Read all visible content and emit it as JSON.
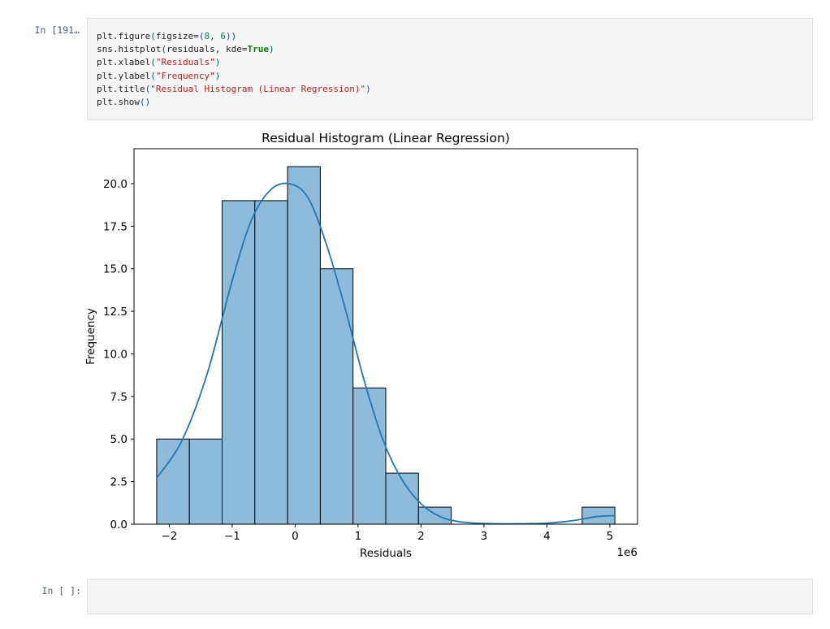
{
  "cells": {
    "first": {
      "prompt": "In [191…",
      "code_lines": [
        [
          {
            "t": "plt.figure",
            "c": "fn"
          },
          {
            "t": "(",
            "c": "p"
          },
          {
            "t": "figsize=",
            "c": "fn"
          },
          {
            "t": "(",
            "c": "p"
          },
          {
            "t": "8",
            "c": "num"
          },
          {
            "t": ", ",
            "c": "fn"
          },
          {
            "t": "6",
            "c": "num"
          },
          {
            "t": "))",
            "c": "p"
          }
        ],
        [
          {
            "t": "sns.histplot",
            "c": "fn"
          },
          {
            "t": "(",
            "c": "p"
          },
          {
            "t": "residuals, kde=",
            "c": "fn"
          },
          {
            "t": "True",
            "c": "kw"
          },
          {
            "t": ")",
            "c": "p"
          }
        ],
        [
          {
            "t": "plt.xlabel",
            "c": "fn"
          },
          {
            "t": "(",
            "c": "p"
          },
          {
            "t": "\"Residuals\"",
            "c": "str"
          },
          {
            "t": ")",
            "c": "p"
          }
        ],
        [
          {
            "t": "plt.ylabel",
            "c": "fn"
          },
          {
            "t": "(",
            "c": "p"
          },
          {
            "t": "\"Frequency\"",
            "c": "str"
          },
          {
            "t": ")",
            "c": "p"
          }
        ],
        [
          {
            "t": "plt.title",
            "c": "fn"
          },
          {
            "t": "(",
            "c": "p"
          },
          {
            "t": "\"Residual Histogram (Linear Regression)\"",
            "c": "str"
          },
          {
            "t": ")",
            "c": "p"
          }
        ],
        [
          {
            "t": "plt.show",
            "c": "fn"
          },
          {
            "t": "()",
            "c": "p"
          }
        ]
      ]
    },
    "second": {
      "prompt": "In [ ]:"
    }
  },
  "colors": {
    "bar_fill": "#8fbbda",
    "bar_stroke": "#000000",
    "kde_line": "#1f77b4"
  },
  "chart_data": {
    "type": "bar",
    "title": "Residual Histogram (Linear Regression)",
    "xlabel": "Residuals",
    "ylabel": "Frequency",
    "x_offset_label": "1e6",
    "bin_edges": [
      -2.2,
      -1.68,
      -1.16,
      -0.64,
      -0.12,
      0.4,
      0.92,
      1.44,
      1.96,
      2.48,
      3.0,
      3.52,
      4.04,
      4.56,
      5.08
    ],
    "values": [
      5,
      5,
      19,
      19,
      21,
      15,
      8,
      3,
      1,
      0,
      0,
      0,
      0,
      1
    ],
    "xlim": [
      -2.56,
      5.44
    ],
    "ylim": [
      0,
      22.05
    ],
    "xticks": [
      -2,
      -1,
      0,
      1,
      2,
      3,
      4,
      5
    ],
    "xtick_labels": [
      "−2",
      "−1",
      "0",
      "1",
      "2",
      "3",
      "4",
      "5"
    ],
    "yticks": [
      0.0,
      2.5,
      5.0,
      7.5,
      10.0,
      12.5,
      15.0,
      17.5,
      20.0
    ],
    "ytick_labels": [
      "0.0",
      "2.5",
      "5.0",
      "7.5",
      "10.0",
      "12.5",
      "15.0",
      "17.5",
      "20.0"
    ],
    "kde": {
      "x": [
        -2.2,
        -1.8,
        -1.4,
        -1.0,
        -0.7,
        -0.4,
        -0.1,
        0.2,
        0.5,
        0.8,
        1.1,
        1.4,
        1.7,
        2.0,
        2.3,
        2.6,
        3.0,
        3.5,
        4.0,
        4.4,
        4.8,
        5.08
      ],
      "y": [
        2.7,
        4.9,
        8.8,
        14.3,
        17.8,
        19.6,
        20.0,
        19.2,
        16.4,
        12.6,
        8.4,
        4.9,
        2.6,
        1.2,
        0.45,
        0.15,
        0.04,
        0.02,
        0.06,
        0.2,
        0.45,
        0.5
      ]
    },
    "grid": false,
    "legend": "none"
  }
}
